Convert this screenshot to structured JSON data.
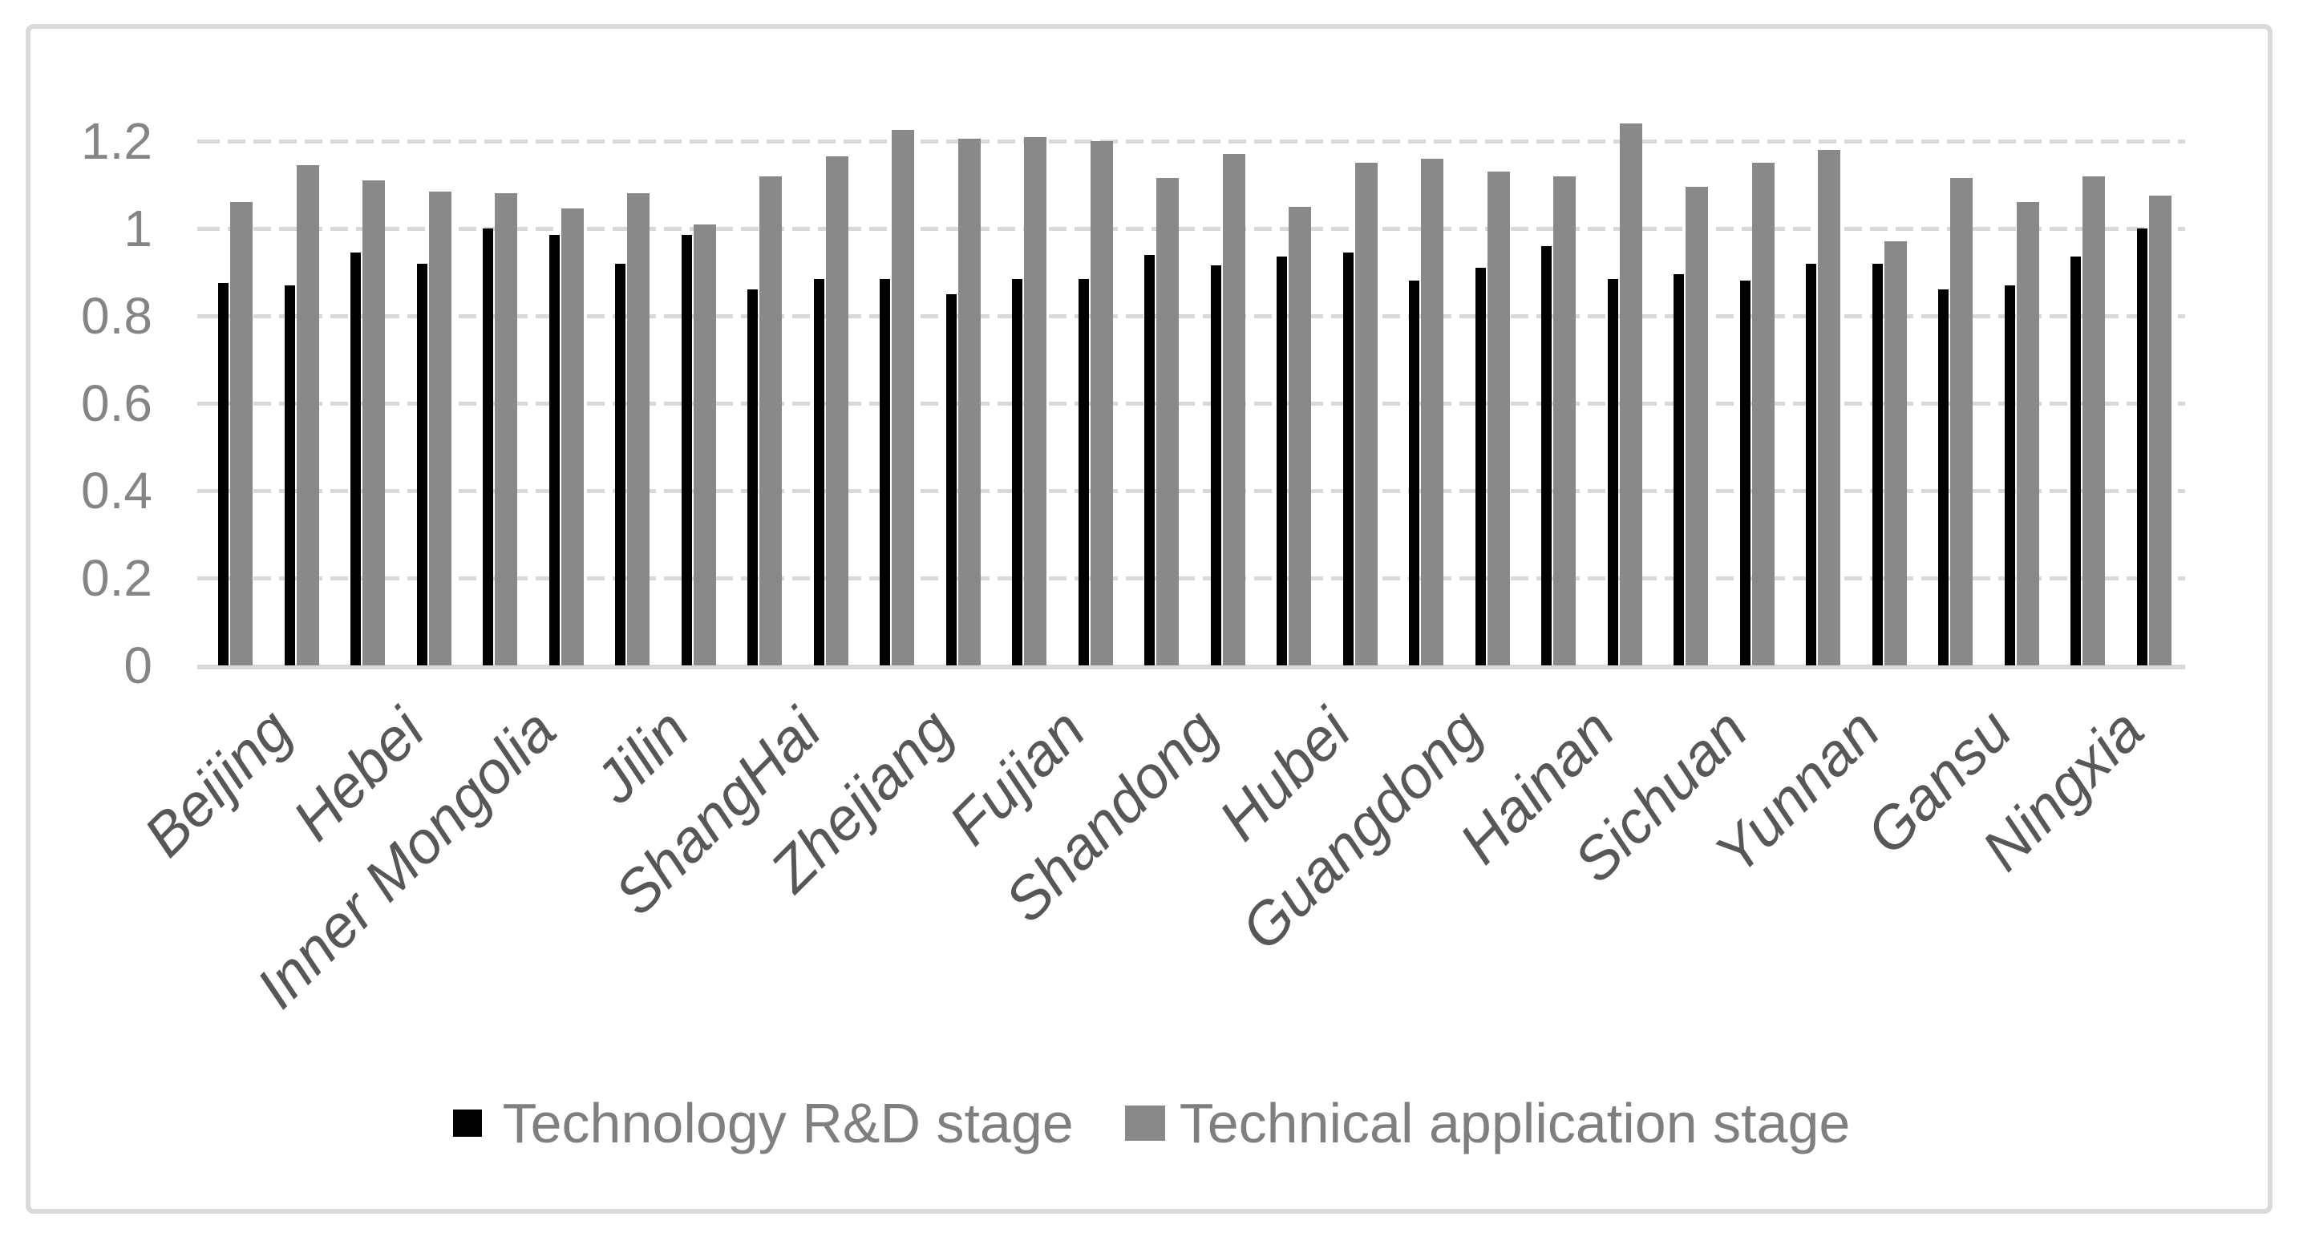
{
  "chart_data": {
    "type": "bar",
    "title": "",
    "xlabel": "",
    "ylabel": "",
    "x_tick_labels": [
      "Beijing",
      "",
      "Hebei",
      "",
      "Inner Mongolia",
      "",
      "Jilin",
      "",
      "ShangHai",
      "",
      "Zhejiang",
      "",
      "Fujian",
      "",
      "Shandong",
      "",
      "Hubei",
      "",
      "Guangdong",
      "",
      "Hainan",
      "",
      "Sichuan",
      "",
      "Yunnan",
      "",
      "Gansu",
      "",
      "Ningxia",
      ""
    ],
    "series": [
      {
        "name": "Technology R&D stage",
        "color": "#000000",
        "values": [
          0.875,
          0.87,
          0.945,
          0.92,
          1.0,
          0.985,
          0.92,
          0.985,
          0.86,
          0.885,
          0.885,
          0.85,
          0.885,
          0.885,
          0.94,
          0.915,
          0.935,
          0.945,
          0.88,
          0.91,
          0.96,
          0.885,
          0.895,
          0.88,
          0.92,
          0.92,
          0.86,
          0.87,
          0.935,
          1.0
        ]
      },
      {
        "name": "Technical application stage",
        "color": "#898989",
        "values": [
          1.06,
          1.145,
          1.11,
          1.085,
          1.08,
          1.045,
          1.08,
          1.01,
          1.12,
          1.165,
          1.225,
          1.205,
          1.21,
          1.2,
          1.115,
          1.17,
          1.05,
          1.15,
          1.16,
          1.13,
          1.12,
          1.24,
          1.095,
          1.15,
          1.18,
          0.97,
          1.115,
          1.06,
          1.12,
          1.075
        ]
      }
    ],
    "y_ticks": [
      "0",
      "0.2",
      "0.4",
      "0.6",
      "0.8",
      "1",
      "1.2"
    ],
    "ylim": [
      0,
      1.3
    ],
    "grid": "horizontal-dashed",
    "gridline_color": "#d9d9d9",
    "axis_label_color": "#858585",
    "category_label_color": "#575757",
    "legend_text_color": "#7f7f7f",
    "legend_position": "bottom",
    "x_label_rotation_deg": -45
  }
}
